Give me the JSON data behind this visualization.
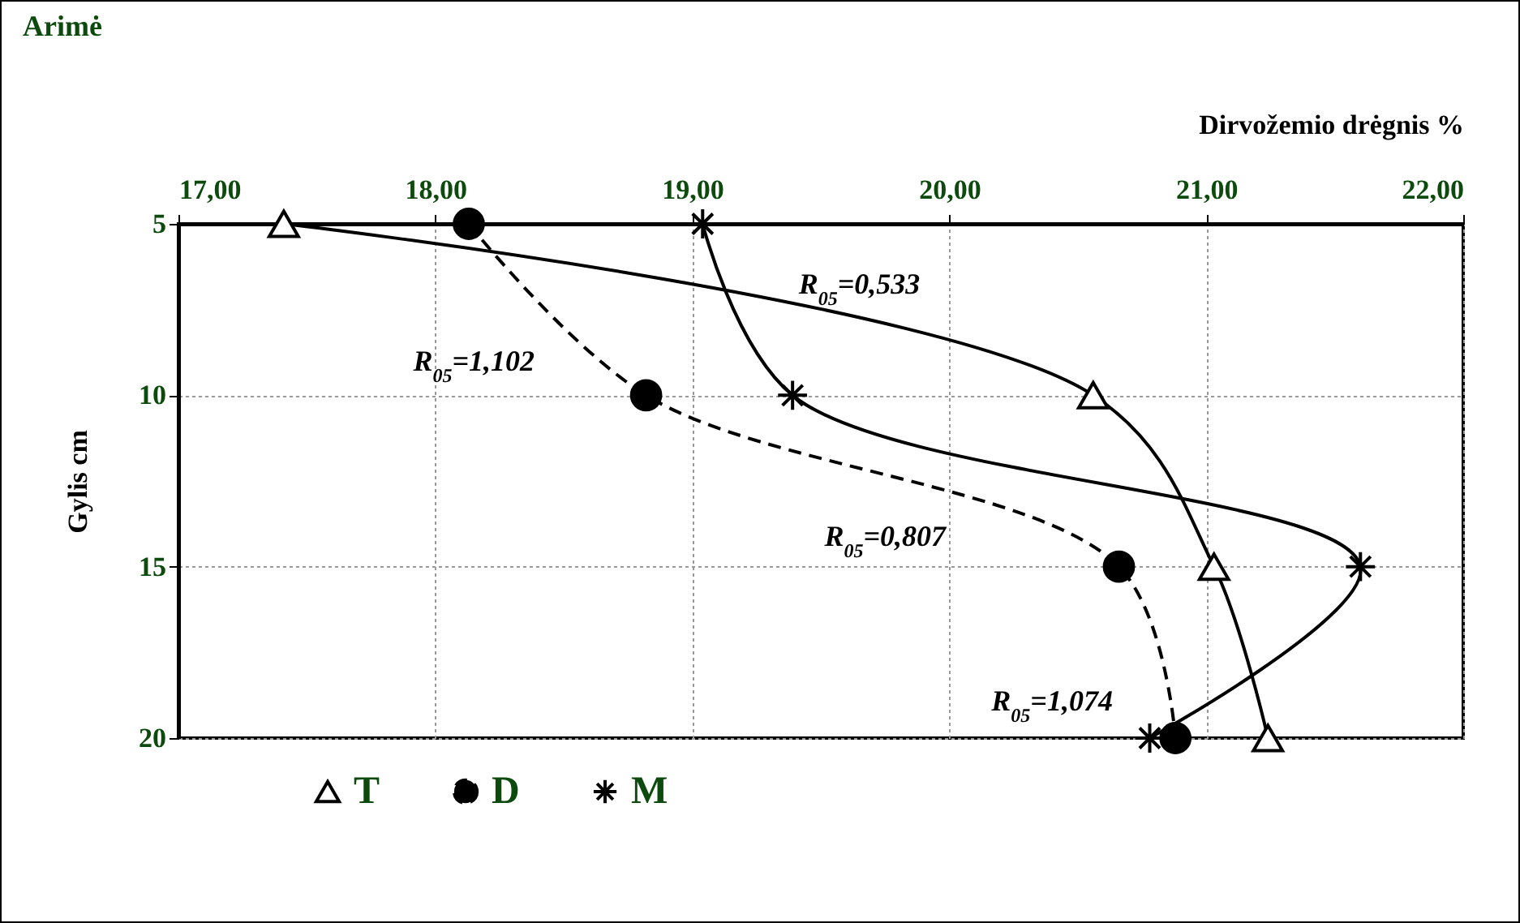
{
  "chart_data": {
    "type": "line",
    "title": "Arimė",
    "xlabel": "Dirvožemio drėgnis %",
    "ylabel": "Gylis cm",
    "xlim": [
      17,
      22
    ],
    "xticks": [
      {
        "value": 17,
        "label": "17,00"
      },
      {
        "value": 18,
        "label": "18,00"
      },
      {
        "value": 19,
        "label": "19,00"
      },
      {
        "value": 20,
        "label": "20,00"
      },
      {
        "value": 21,
        "label": "21,00"
      },
      {
        "value": 22,
        "label": "22,00"
      }
    ],
    "ylim": [
      20,
      5
    ],
    "yticks": [
      5,
      10,
      15,
      20
    ],
    "grid": true,
    "legend": "bottom",
    "series": [
      {
        "name": "T",
        "color": "#000000",
        "marker": "triangle",
        "line_style": "solid",
        "x": [
          17.41,
          20.56,
          21.03,
          21.24
        ],
        "values": [
          5,
          10,
          15,
          20
        ]
      },
      {
        "name": "D",
        "color": "#000000",
        "marker": "circle",
        "line_style": "dashed",
        "x": [
          18.13,
          18.82,
          20.66,
          20.88
        ],
        "values": [
          5,
          10,
          15,
          20
        ]
      },
      {
        "name": "M",
        "color": "#000000",
        "marker": "cross",
        "line_style": "solid",
        "x": [
          19.04,
          19.39,
          21.6,
          20.78
        ],
        "values": [
          5,
          10,
          15,
          20
        ]
      }
    ],
    "annotations": [
      "R$_{05}$=0,533",
      "R$_{05}$=1,102",
      "R$_{05}$=0,807",
      "R$_{05}$=1,074"
    ]
  }
}
